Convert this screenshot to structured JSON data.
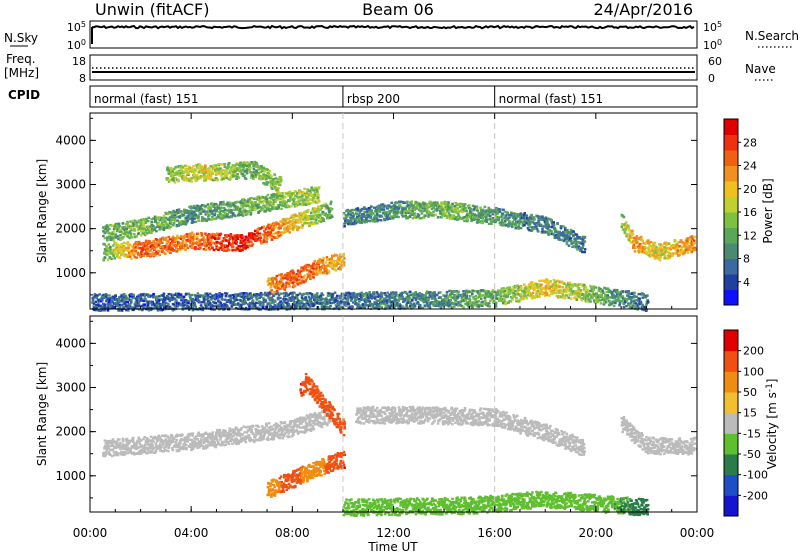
{
  "header": {
    "station": "Unwin (fitACF)",
    "beam": "Beam 06",
    "date": "24/Apr/2016"
  },
  "status_panels": {
    "nsky_label": "N.Sky",
    "nsky_ticks": [
      "10^5",
      "10^0"
    ],
    "nsearch_label": "N.Search",
    "nsearch_ticks": [
      "10^5",
      "10^0"
    ],
    "freq_label": "Freq.",
    "freq_unit": "[MHz]",
    "freq_ticks": [
      "18",
      "8"
    ],
    "nave_label": "Nave",
    "nave_ticks": [
      "60",
      "0"
    ],
    "cpid_label": "CPID",
    "cpid_segments": [
      {
        "label": "normal (fast) 151",
        "start_hour": 0,
        "end_hour": 10
      },
      {
        "label": "rbsp 200",
        "start_hour": 10,
        "end_hour": 16
      },
      {
        "label": "normal (fast) 151",
        "start_hour": 16,
        "end_hour": 24
      }
    ]
  },
  "chart_data": [
    {
      "type": "heatmap",
      "title": "",
      "xlabel": "Time UT",
      "ylabel": "Slant Range [km]",
      "x_ticks": [
        "00:00",
        "04:00",
        "08:00",
        "12:00",
        "16:00",
        "20:00",
        "00:00"
      ],
      "xlim_hours": [
        0,
        24
      ],
      "y_ticks": [
        1000,
        2000,
        3000,
        4000
      ],
      "ylim": [
        180,
        4620
      ],
      "colorbar": {
        "label": "Power [dB]",
        "ticks": [
          4,
          8,
          12,
          16,
          20,
          24,
          28
        ],
        "range": [
          0,
          32
        ],
        "colors": [
          "#1010ff",
          "#2040a0",
          "#3a6aa0",
          "#4a8a70",
          "#58a858",
          "#80c040",
          "#c0d030",
          "#f0c020",
          "#f09020",
          "#f06010",
          "#f03010",
          "#e00000"
        ]
      },
      "echo_regions": [
        {
          "name": "main band",
          "points": [
            [
              0.5,
              1500,
              12
            ],
            [
              2,
              1550,
              26
            ],
            [
              4,
              1750,
              24
            ],
            [
              6,
              1700,
              30
            ],
            [
              8,
              2150,
              20
            ],
            [
              9.5,
              2450,
              12
            ]
          ]
        },
        {
          "name": "upper band",
          "points": [
            [
              0.5,
              1900,
              12
            ],
            [
              2,
              2050,
              14
            ],
            [
              4,
              2350,
              10
            ],
            [
              6,
              2500,
              12
            ],
            [
              9,
              2800,
              16
            ]
          ]
        },
        {
          "name": "far range patch",
          "points": [
            [
              3,
              3250,
              14
            ],
            [
              4.5,
              3300,
              18
            ],
            [
              6.5,
              3350,
              12
            ],
            [
              7.5,
              3000,
              16
            ]
          ]
        },
        {
          "name": "lower patch",
          "points": [
            [
              7,
              700,
              22
            ],
            [
              8,
              900,
              26
            ],
            [
              9,
              1150,
              24
            ],
            [
              10,
              1300,
              20
            ]
          ]
        },
        {
          "name": "mid-day band",
          "points": [
            [
              10,
              2250,
              8
            ],
            [
              12,
              2450,
              10
            ],
            [
              14,
              2450,
              14
            ],
            [
              16,
              2300,
              10
            ],
            [
              18,
              2100,
              8
            ],
            [
              19.5,
              1650,
              8
            ]
          ]
        },
        {
          "name": "near range",
          "points": [
            [
              0,
              350,
              6
            ],
            [
              6,
              380,
              6
            ],
            [
              12,
              400,
              8
            ],
            [
              16,
              450,
              12
            ],
            [
              18,
              700,
              20
            ],
            [
              22,
              350,
              6
            ]
          ]
        },
        {
          "name": "evening band",
          "points": [
            [
              21,
              2200,
              14
            ],
            [
              21.5,
              1700,
              22
            ],
            [
              22.5,
              1500,
              18
            ],
            [
              24,
              1700,
              24
            ]
          ]
        }
      ]
    },
    {
      "type": "heatmap",
      "title": "",
      "xlabel": "Time UT",
      "ylabel": "Slant Range [km]",
      "x_ticks": [
        "00:00",
        "04:00",
        "08:00",
        "12:00",
        "16:00",
        "20:00",
        "00:00"
      ],
      "xlim_hours": [
        0,
        24
      ],
      "y_ticks": [
        1000,
        2000,
        3000,
        4000
      ],
      "ylim": [
        180,
        4620
      ],
      "colorbar": {
        "label": "Velocity [m s^-1]",
        "ticks": [
          200,
          100,
          50,
          15,
          -15,
          -50,
          -100,
          -200
        ],
        "colors": [
          "#1515d0",
          "#1d4ec8",
          "#2a7d4a",
          "#5fbf2f",
          "#bbbbbb",
          "#f0c030",
          "#f08c10",
          "#f05010",
          "#e00000"
        ]
      },
      "echo_regions": [
        {
          "name": "ground scatter band",
          "points": [
            [
              0.5,
              1650,
              0
            ],
            [
              4,
              1800,
              0
            ],
            [
              8,
              2100,
              0
            ],
            [
              9.5,
              2400,
              0
            ]
          ]
        },
        {
          "name": "lower patch",
          "points": [
            [
              7,
              700,
              -80
            ],
            [
              8,
              950,
              -120
            ],
            [
              9,
              1200,
              -60
            ],
            [
              10,
              1400,
              -200
            ]
          ]
        },
        {
          "name": "red cluster",
          "points": [
            [
              8.3,
              2950,
              -200
            ],
            [
              8.5,
              3150,
              -180
            ],
            [
              10,
              2100,
              -150
            ]
          ]
        },
        {
          "name": "mid-day ground scatter",
          "points": [
            [
              10.5,
              2400,
              0
            ],
            [
              13,
              2400,
              0
            ],
            [
              16,
              2350,
              0
            ],
            [
              18,
              2000,
              0
            ],
            [
              19.5,
              1650,
              0
            ]
          ]
        },
        {
          "name": "evening ground scatter",
          "points": [
            [
              21,
              2200,
              0
            ],
            [
              22,
              1700,
              0
            ],
            [
              24,
              1700,
              0
            ]
          ]
        },
        {
          "name": "near range",
          "points": [
            [
              10,
              300,
              40
            ],
            [
              15,
              350,
              30
            ],
            [
              18,
              500,
              20
            ],
            [
              22,
              300,
              60
            ]
          ]
        }
      ]
    }
  ]
}
